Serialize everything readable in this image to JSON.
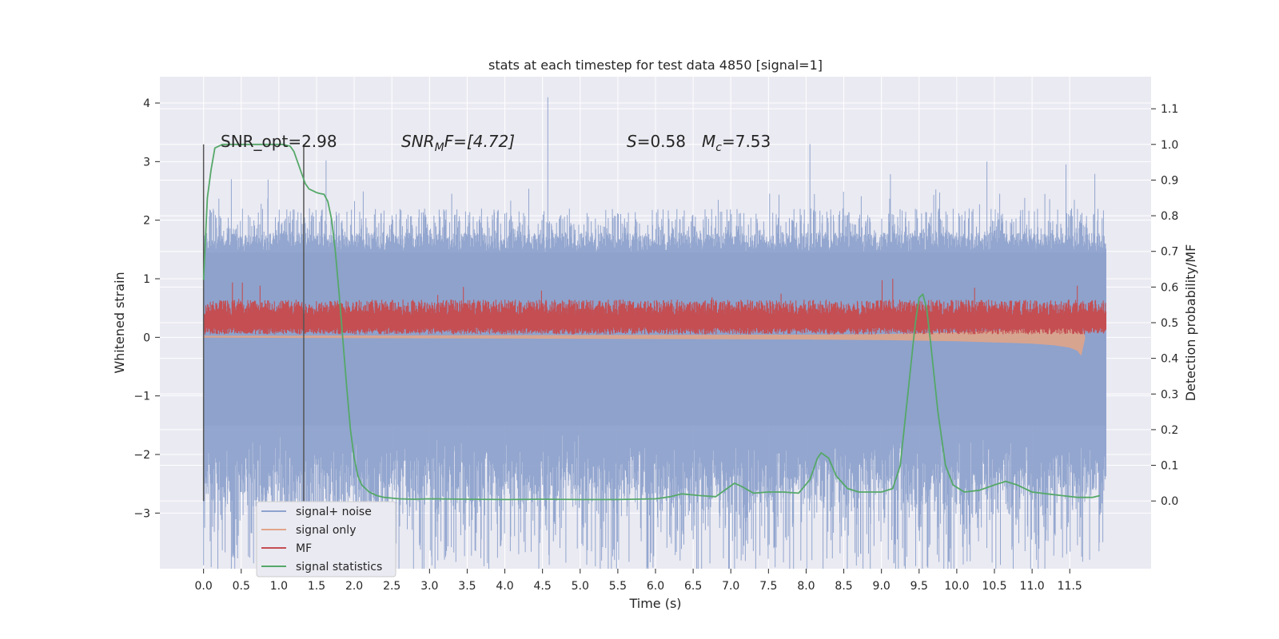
{
  "chart_data": {
    "type": "line",
    "title": "stats at each timestep for test data 4850 [signal=1]",
    "xlabel": "Time (s)",
    "ylabel": "Whitened strain",
    "y2label": "Detection probability/MF",
    "xlim": [
      -0.58,
      12.58
    ],
    "ylim": [
      -3.95,
      4.45
    ],
    "y2lim": [
      -0.19,
      1.19
    ],
    "xticks": [
      0.0,
      0.5,
      1.0,
      1.5,
      2.0,
      2.5,
      3.0,
      3.5,
      4.0,
      4.5,
      5.0,
      5.5,
      6.0,
      6.5,
      7.0,
      7.5,
      8.0,
      8.5,
      9.0,
      9.5,
      10.0,
      10.5,
      11.0,
      11.5
    ],
    "xtick_labels": [
      "0.0",
      "0.5",
      "1.0",
      "1.5",
      "2.0",
      "2.5",
      "3.0",
      "3.5",
      "4.0",
      "4.5",
      "5.0",
      "5.5",
      "6.0",
      "6.5",
      "7.0",
      "7.5",
      "8.0",
      "8.5",
      "9.0",
      "9.5",
      "10.0",
      "10.5",
      "11.0",
      "11.5"
    ],
    "yticks": [
      -3,
      -2,
      -1,
      0,
      1,
      2,
      3,
      4
    ],
    "ytick_labels": [
      "−3",
      "−2",
      "−1",
      "0",
      "1",
      "2",
      "3",
      "4"
    ],
    "y2ticks": [
      0.0,
      0.1,
      0.2,
      0.3,
      0.4,
      0.5,
      0.6,
      0.7,
      0.8,
      0.9,
      1.0,
      1.1
    ],
    "y2tick_labels": [
      "0.0",
      "0.1",
      "0.2",
      "0.3",
      "0.4",
      "0.5",
      "0.6",
      "0.7",
      "0.8",
      "0.9",
      "1.0",
      "1.1"
    ],
    "grid": true,
    "legend_position": "lower-left",
    "colors": {
      "background": "#eaeaf2",
      "grid": "#ffffff",
      "noise": "#8ea2cc",
      "signal": "#e0a58a",
      "mf": "#c44e52",
      "stat": "#55a868",
      "vline": "#555555"
    },
    "annotations": {
      "snr_opt": "SNR_opt=2.98",
      "snr_mf_main": "SNR",
      "snr_mf_sub": "M",
      "snr_mf_rest": "F=[4.72]",
      "s_label": "S",
      "s_value": "=0.58",
      "mc_main": "M",
      "mc_sub": "c",
      "mc_value": "=7.53"
    },
    "vlines": [
      0.0,
      1.33
    ],
    "series": [
      {
        "name": "signal+ noise",
        "axis": "left",
        "x_start": 0.0,
        "x_end": 11.98,
        "envelope": {
          "outer_upper": 2.2,
          "outer_lower": -2.2,
          "core_upper": 1.45,
          "core_lower": -1.5,
          "max_spike": 4.1,
          "max_spike_x": 4.57,
          "min_spike": -3.6,
          "min_spike_x": 9.28
        }
      },
      {
        "name": "signal only",
        "axis": "left",
        "x": [
          0.0,
          8.0,
          9.0,
          10.0,
          10.5,
          11.0,
          11.3,
          11.5,
          11.6,
          11.65,
          11.7
        ],
        "y_upper": [
          0.02,
          0.04,
          0.05,
          0.08,
          0.11,
          0.14,
          0.17,
          0.18,
          0.19,
          0.19,
          0.0
        ],
        "y_lower": [
          0.0,
          -0.03,
          -0.04,
          -0.06,
          -0.08,
          -0.1,
          -0.13,
          -0.17,
          -0.22,
          -0.3,
          -0.01
        ]
      },
      {
        "name": "MF",
        "axis": "left",
        "x_start": 0.0,
        "x_end": 11.98,
        "band": {
          "upper": 0.52,
          "lower": 0.05,
          "peak": 0.98,
          "baseline": 0.3
        }
      },
      {
        "name": "signal statistics",
        "axis": "right",
        "x": [
          0.0,
          0.05,
          0.1,
          0.15,
          0.25,
          0.4,
          0.6,
          0.9,
          1.05,
          1.15,
          1.2,
          1.25,
          1.3,
          1.35,
          1.4,
          1.45,
          1.5,
          1.55,
          1.6,
          1.65,
          1.7,
          1.75,
          1.8,
          1.85,
          1.9,
          1.95,
          2.0,
          2.05,
          2.1,
          2.2,
          2.3,
          2.4,
          2.5,
          2.6,
          2.8,
          3.0,
          3.5,
          4.0,
          4.5,
          5.0,
          5.5,
          6.0,
          6.2,
          6.35,
          6.6,
          6.8,
          6.95,
          7.05,
          7.15,
          7.3,
          7.5,
          7.7,
          7.9,
          8.05,
          8.15,
          8.2,
          8.3,
          8.4,
          8.55,
          8.7,
          9.0,
          9.15,
          9.25,
          9.35,
          9.45,
          9.5,
          9.55,
          9.6,
          9.65,
          9.75,
          9.85,
          9.95,
          10.1,
          10.3,
          10.5,
          10.65,
          10.8,
          11.0,
          11.2,
          11.4,
          11.6,
          11.8,
          11.9
        ],
        "y": [
          0.62,
          0.85,
          0.93,
          0.99,
          1.0,
          1.0,
          1.0,
          1.0,
          1.0,
          0.995,
          0.98,
          0.95,
          0.92,
          0.89,
          0.875,
          0.87,
          0.865,
          0.862,
          0.86,
          0.84,
          0.79,
          0.7,
          0.58,
          0.45,
          0.32,
          0.2,
          0.12,
          0.07,
          0.045,
          0.025,
          0.015,
          0.01,
          0.008,
          0.006,
          0.005,
          0.006,
          0.005,
          0.004,
          0.005,
          0.004,
          0.004,
          0.006,
          0.012,
          0.02,
          0.015,
          0.012,
          0.035,
          0.05,
          0.04,
          0.022,
          0.025,
          0.025,
          0.022,
          0.06,
          0.12,
          0.135,
          0.12,
          0.07,
          0.035,
          0.025,
          0.025,
          0.035,
          0.1,
          0.3,
          0.5,
          0.57,
          0.58,
          0.54,
          0.45,
          0.25,
          0.1,
          0.045,
          0.025,
          0.03,
          0.045,
          0.055,
          0.045,
          0.025,
          0.02,
          0.015,
          0.01,
          0.01,
          0.015
        ]
      }
    ]
  }
}
